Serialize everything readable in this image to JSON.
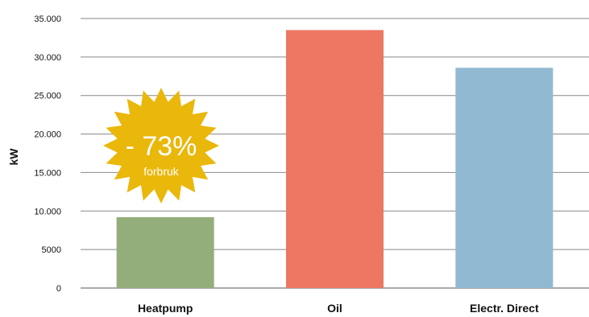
{
  "chart_data": {
    "type": "bar",
    "categories": [
      "Heatpump",
      "Oil",
      "Electr. Direct"
    ],
    "values": [
      9200,
      33500,
      28600
    ],
    "colors": [
      "#94ae7b",
      "#ed7762",
      "#91bad2"
    ],
    "ylabel": "kW",
    "ylim": [
      0,
      35000
    ],
    "yticks": [
      0,
      5000,
      10000,
      15000,
      20000,
      25000,
      30000,
      35000
    ],
    "ytick_labels": [
      "0",
      "5000",
      "10.000",
      "15.000",
      "20.000",
      "25.000",
      "30.000",
      "35.000"
    ],
    "grid": true,
    "annotation": {
      "main": "- 73%",
      "sub": "forbruk",
      "color": "#eab70b"
    }
  }
}
